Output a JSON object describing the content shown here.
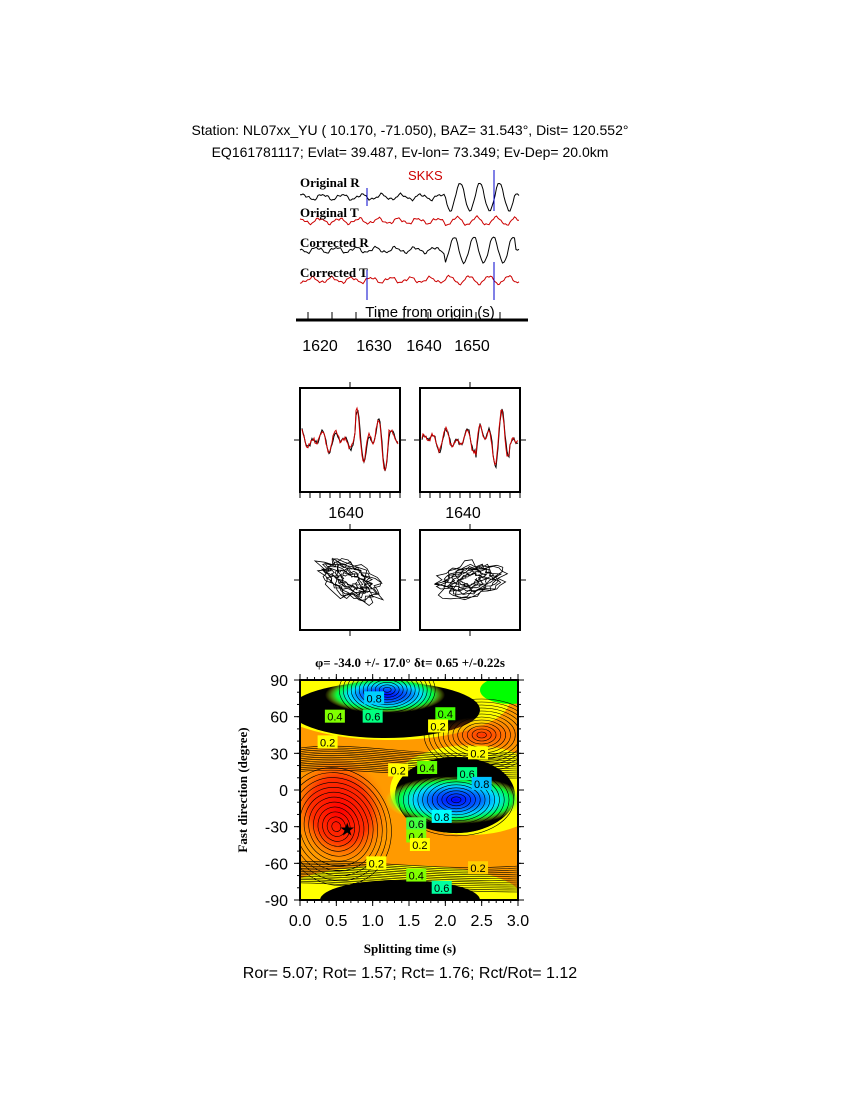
{
  "header": {
    "line1": "Station: NL07xx_YU (  10.170,  -71.050), BAZ=   31.543°, Dist=  120.552°",
    "line2": "EQ161781117; Evlat=  39.487, Ev-lon=  73.349; Ev-Dep= 20.0km"
  },
  "traces": {
    "labels": [
      "Original R",
      "Original T",
      "Corrected R",
      "Corrected T"
    ],
    "phase": "SKKS",
    "xlabel": "Time from origin (s)",
    "ticks": [
      "1620",
      "1630",
      "1640",
      "1650"
    ],
    "colors": {
      "radial": "#000000",
      "transverse": "#cc0000",
      "window": "#0000cc"
    }
  },
  "waveform_panels": {
    "tick_labels": [
      "1640",
      "1640"
    ]
  },
  "chart_data": {
    "type": "heatmap",
    "title": "φ= -34.0 +/- 17.0° δt= 0.65 +/-0.22s",
    "xlabel": "Splitting time (s)",
    "ylabel": "Fast direction (degree)",
    "xlim": [
      0.0,
      3.0
    ],
    "ylim": [
      -90,
      90
    ],
    "xticks": [
      "0.0",
      "0.5",
      "1.0",
      "1.5",
      "2.0",
      "2.5",
      "3.0"
    ],
    "yticks": [
      "90",
      "60",
      "30",
      "0",
      "-30",
      "-60",
      "-90"
    ],
    "best_fit": {
      "dt": 0.65,
      "phi": -34.0
    },
    "contour_labels": [
      "0.8",
      "0.6",
      "0.4",
      "0.4",
      "0.2",
      "0.2",
      "0.2",
      "0.2",
      "0.4",
      "0.6",
      "0.8",
      "0.8",
      "0.6",
      "0.4",
      "0.2",
      "0.2",
      "0.4",
      "0.6",
      "0.2"
    ],
    "colorscale": [
      "#e00000",
      "#ff8000",
      "#ffff00",
      "#00ff00",
      "#00ffff",
      "#0000ff"
    ]
  },
  "footer": {
    "text": "Ror= 5.07; Rot= 1.57; Rct= 1.76; Rct/Rot= 1.12"
  }
}
